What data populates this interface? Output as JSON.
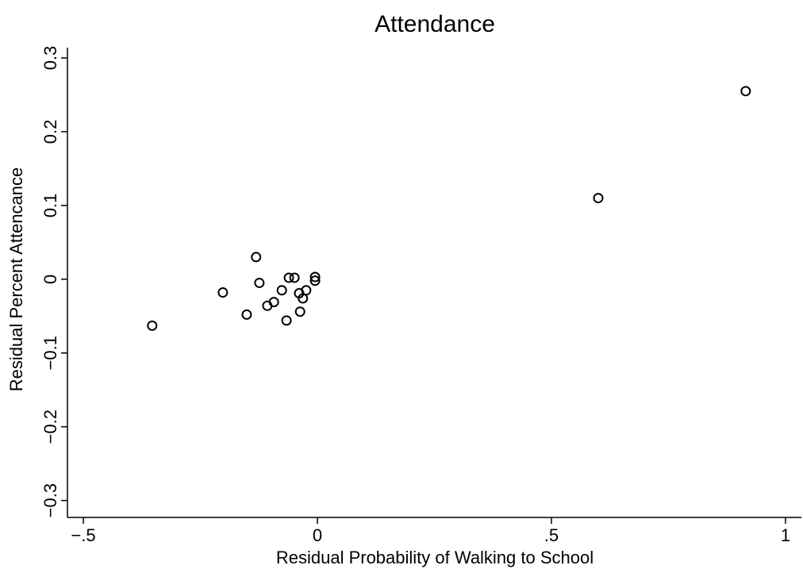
{
  "chart_data": {
    "type": "scatter",
    "title": "Attendance",
    "x_label": "Residual Probability of Walking to School",
    "y_label": "Residual Percent Attencance",
    "x": [
      -0.353,
      -0.202,
      -0.151,
      -0.131,
      -0.124,
      -0.107,
      -0.093,
      -0.076,
      -0.066,
      -0.061,
      -0.049,
      -0.039,
      -0.037,
      -0.031,
      -0.024,
      -0.005,
      -0.005,
      0.6,
      0.915
    ],
    "values": [
      -0.063,
      -0.018,
      -0.048,
      0.03,
      -0.005,
      -0.036,
      -0.031,
      -0.015,
      -0.056,
      0.002,
      0.002,
      -0.019,
      -0.044,
      -0.026,
      -0.015,
      -0.002,
      0.003,
      0.11,
      0.255
    ],
    "color": "#000000",
    "xlim": [
      -0.534,
      1.034
    ],
    "ylim": [
      -0.323,
      0.314
    ],
    "xticks": [
      {
        "value": -0.5,
        "label": "−.5"
      },
      0,
      {
        "value": 0.5,
        "label": ".5"
      },
      1
    ],
    "yticks": [
      {
        "value": -0.3,
        "label": "−0.3"
      },
      {
        "value": -0.2,
        "label": "−0.2"
      },
      {
        "value": -0.1,
        "label": "−0.1"
      },
      0,
      0.1,
      0.2,
      0.3
    ],
    "grid": false
  }
}
